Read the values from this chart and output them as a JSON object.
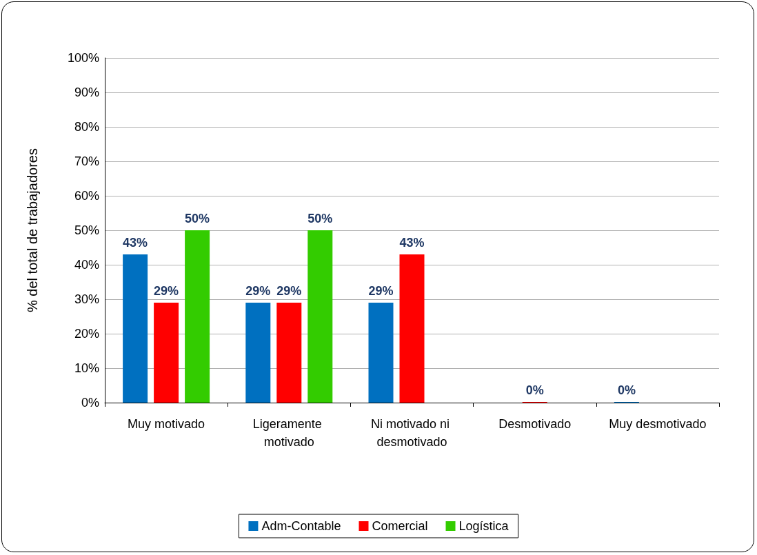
{
  "chart_data": {
    "type": "bar",
    "ylabel": "% del total de trabajadores",
    "categories": [
      "Muy motivado",
      "Ligeramente motivado",
      "Ni motivado ni desmotivado",
      "Desmotivado",
      "Muy desmotivado"
    ],
    "series": [
      {
        "name": "Adm-Contable",
        "color": "#0070c0",
        "values": [
          43,
          29,
          29,
          null,
          0
        ],
        "value_labels": [
          "43%",
          "29%",
          "29%",
          null,
          "0%"
        ]
      },
      {
        "name": "Comercial",
        "color": "#ff0000",
        "values": [
          29,
          29,
          43,
          0,
          null
        ],
        "value_labels": [
          "29%",
          "29%",
          "43%",
          "0%",
          null
        ]
      },
      {
        "name": "Logística",
        "color": "#33cc00",
        "values": [
          50,
          50,
          null,
          null,
          null
        ],
        "value_labels": [
          "50%",
          "50%",
          null,
          null,
          null
        ]
      }
    ],
    "ylim": [
      0,
      100
    ],
    "yticks": [
      {
        "value": 0,
        "label": "0%"
      },
      {
        "value": 10,
        "label": "10%"
      },
      {
        "value": 20,
        "label": "20%"
      },
      {
        "value": 30,
        "label": "30%"
      },
      {
        "value": 40,
        "label": "40%"
      },
      {
        "value": 50,
        "label": "50%"
      },
      {
        "value": 60,
        "label": "60%"
      },
      {
        "value": 70,
        "label": "70%"
      },
      {
        "value": 80,
        "label": "80%"
      },
      {
        "value": 90,
        "label": "90%"
      },
      {
        "value": 100,
        "label": "100%"
      }
    ],
    "grid": "y",
    "legend": "bottom"
  }
}
